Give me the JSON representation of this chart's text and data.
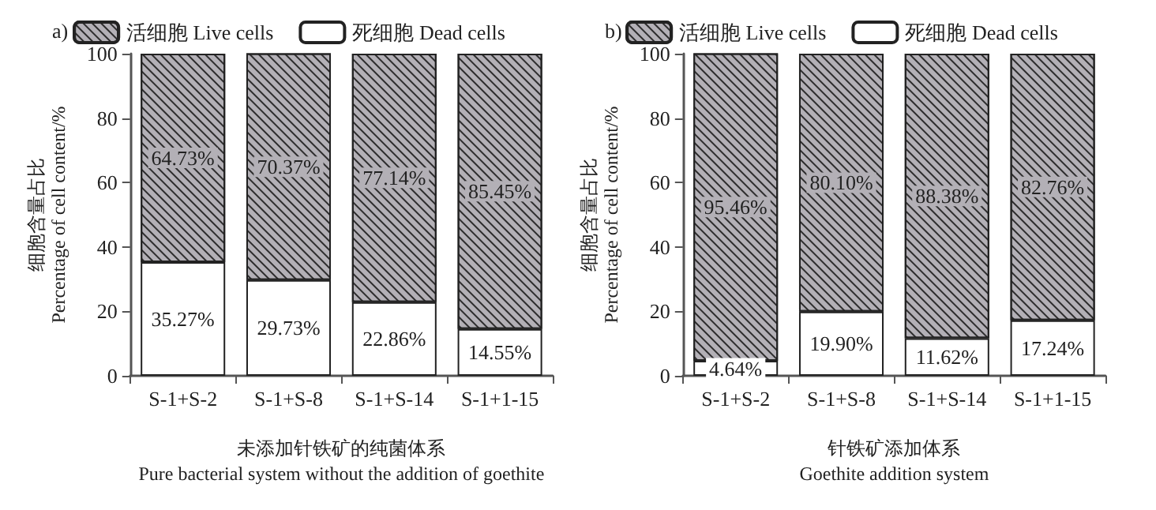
{
  "chart_data": [
    {
      "type": "bar",
      "title": "a)",
      "stacked": true,
      "categories": [
        "S-1+S-2",
        "S-1+S-8",
        "S-1+S-14",
        "S-1+1-15"
      ],
      "series": [
        {
          "name": "死细胞 Dead cells",
          "color": "#ffffff",
          "values": [
            35.27,
            29.73,
            22.86,
            14.55
          ],
          "value_labels": [
            "35.27%",
            "29.73%",
            "22.86%",
            "14.55%"
          ]
        },
        {
          "name": "活细胞 Live cells",
          "color": "#b3b0b6",
          "values": [
            64.73,
            70.37,
            77.14,
            85.45
          ],
          "value_labels": [
            "64.73%",
            "70.37%",
            "77.14%",
            "85.45%"
          ]
        }
      ],
      "xlabel": "未添加针铁矿的纯菌体系\nPure bacterial system without the addition of goethite",
      "ylabel": "细胞含量占比\nPercentage of cell content/%",
      "ylim": [
        0,
        100
      ],
      "yticks": [
        0,
        20,
        40,
        60,
        80,
        100
      ],
      "legend": "top",
      "grid": false
    },
    {
      "type": "bar",
      "title": "b)",
      "stacked": true,
      "categories": [
        "S-1+S-2",
        "S-1+S-8",
        "S-1+S-14",
        "S-1+1-15"
      ],
      "series": [
        {
          "name": "死细胞 Dead cells",
          "color": "#ffffff",
          "values": [
            4.64,
            19.9,
            11.62,
            17.24
          ],
          "value_labels": [
            "4.64%",
            "19.90%",
            "11.62%",
            "17.24%"
          ]
        },
        {
          "name": "活细胞 Live cells",
          "color": "#b3b0b6",
          "values": [
            95.46,
            80.1,
            88.38,
            82.76
          ],
          "value_labels": [
            "95.46%",
            "80.10%",
            "88.38%",
            "82.76%"
          ]
        }
      ],
      "xlabel": "针铁矿添加体系\nGoethite addition system",
      "ylabel": "细胞含量占比\nPercentage of cell content/%",
      "ylim": [
        0,
        100
      ],
      "yticks": [
        0,
        20,
        40,
        60,
        80,
        100
      ],
      "legend": "top",
      "grid": false
    }
  ]
}
